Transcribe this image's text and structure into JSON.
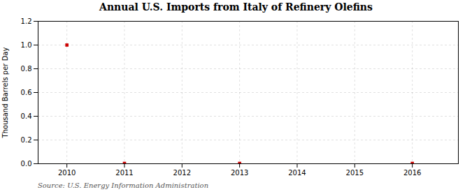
{
  "chart_data": {
    "type": "scatter",
    "title": "Annual U.S. Imports from Italy of Refinery Olefins",
    "ylabel": "Thousand Barrels per Day",
    "annotations": [
      "Source: U.S. Energy Information Administration"
    ],
    "x": [
      2010,
      2011,
      2013,
      2016
    ],
    "values": [
      1.0,
      0.003,
      0.003,
      0.003
    ],
    "color": "#cc0000",
    "marker": "square",
    "xlim": [
      2009.5,
      2016.8
    ],
    "ylim": [
      0.0,
      1.2
    ],
    "xticks": [
      2010,
      2011,
      2012,
      2013,
      2014,
      2015,
      2016
    ],
    "yticks": [
      {
        "value": 0,
        "label": "0.0"
      },
      0.2,
      0.4,
      0.6,
      0.8,
      {
        "value": 1,
        "label": "1.0"
      },
      1.2
    ],
    "grid": true
  }
}
